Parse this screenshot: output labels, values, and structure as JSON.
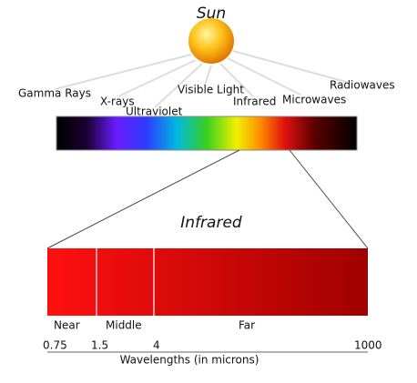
{
  "title": "Sun",
  "spectrum": {
    "labels": [
      "Gamma Rays",
      "X-rays",
      "Ultraviolet",
      "Visible Light",
      "Infrared",
      "Microwaves",
      "Radiowaves"
    ]
  },
  "detail": {
    "title": "Infrared",
    "regions": [
      "Near",
      "Middle",
      "Far"
    ],
    "ticks": [
      "0.75",
      "1.5",
      "4",
      "1000"
    ],
    "axis_label": "Wavelengths (in microns)"
  }
}
